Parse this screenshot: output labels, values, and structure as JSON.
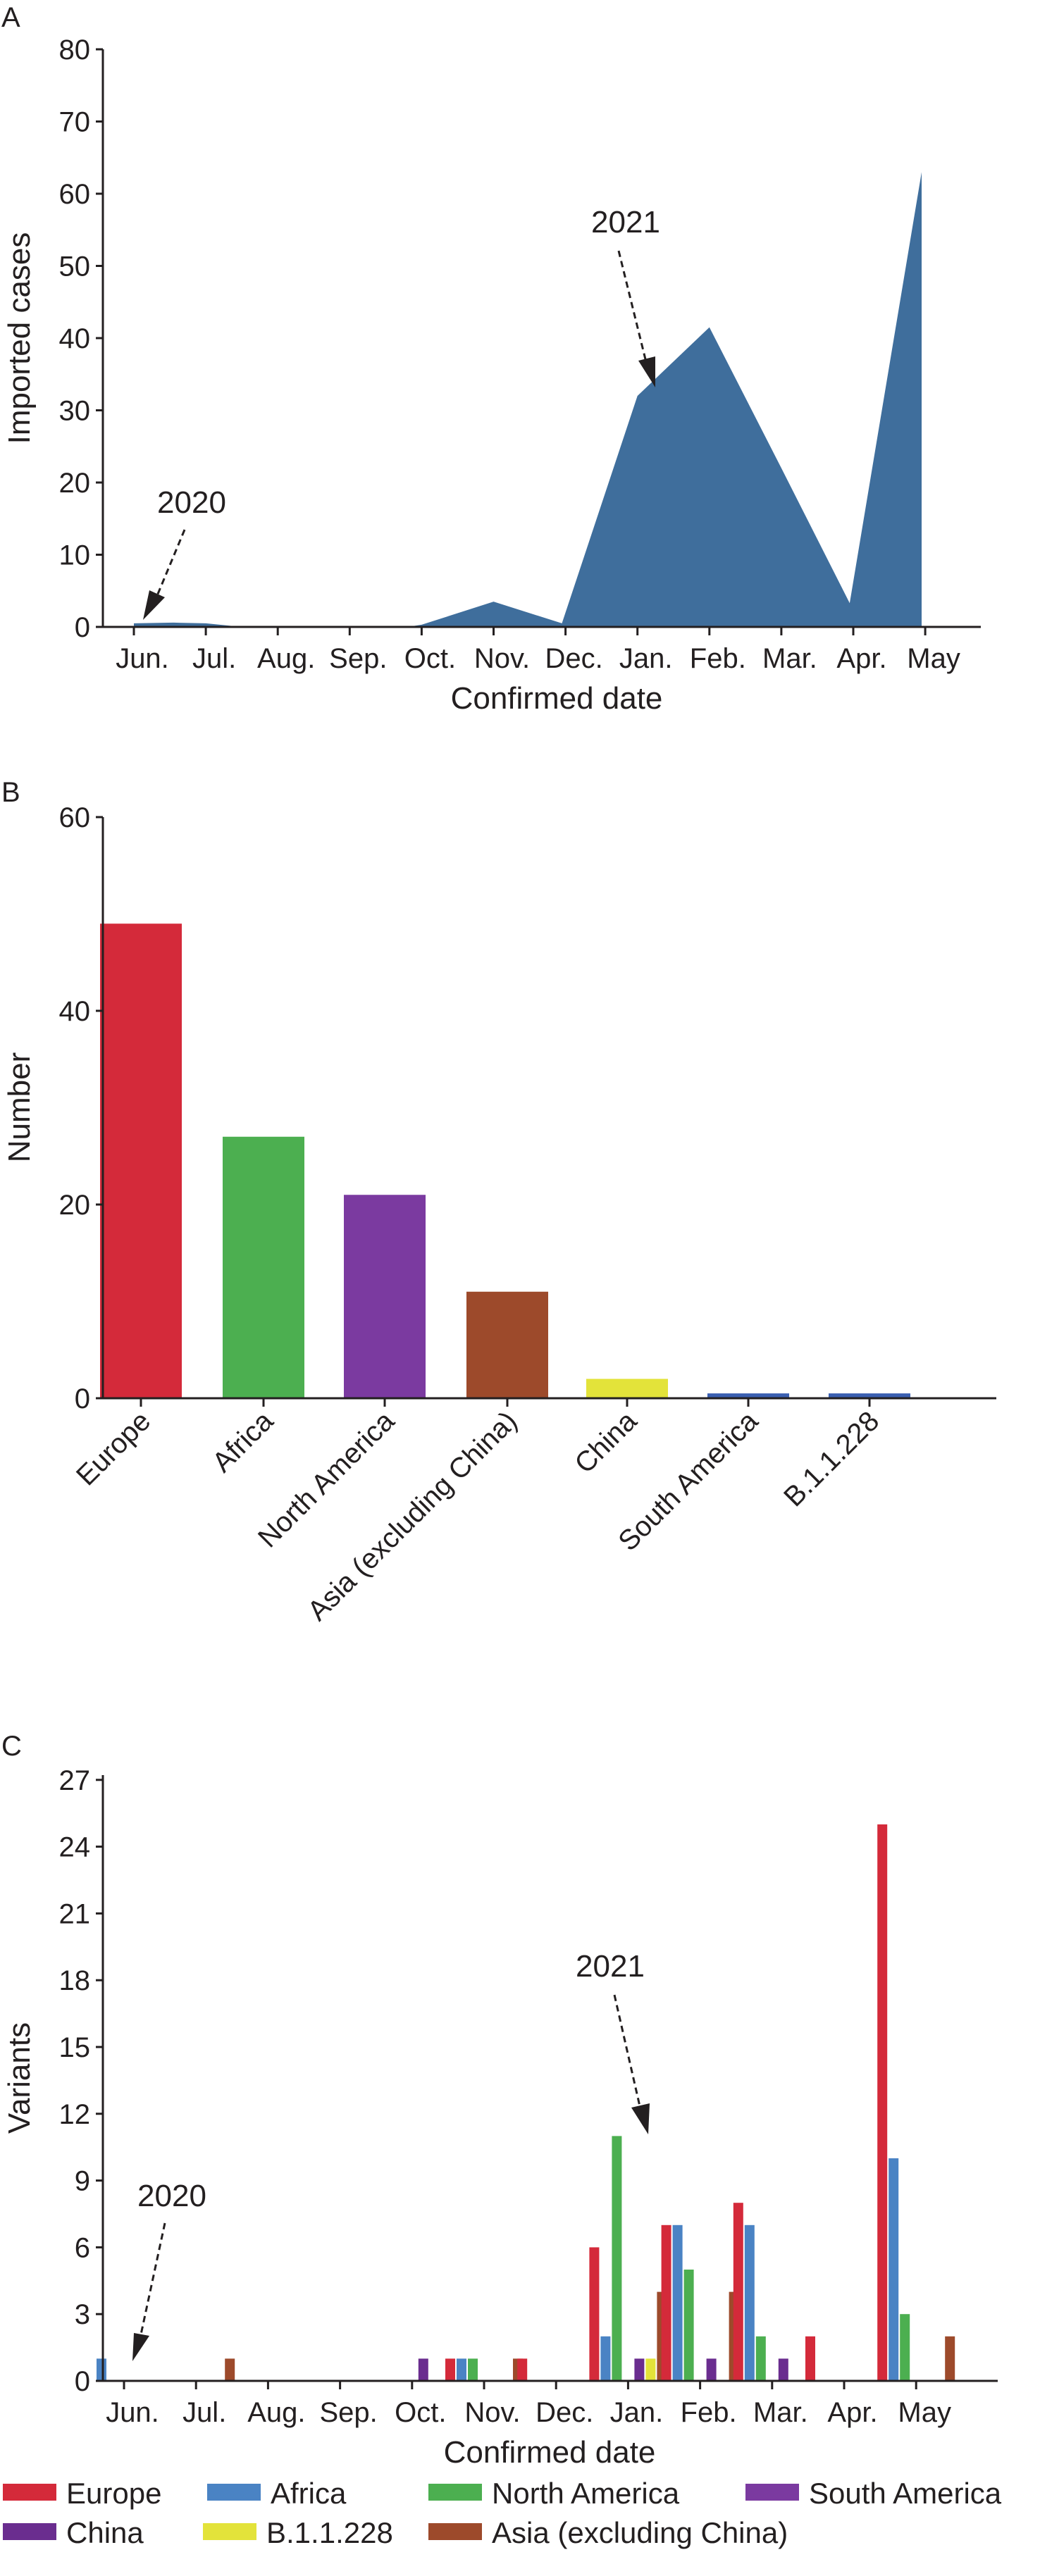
{
  "panels": [
    {
      "letter": "A"
    },
    {
      "letter": "B"
    },
    {
      "letter": "C"
    }
  ],
  "chart_data": [
    {
      "type": "area",
      "panel": "A",
      "xlabel": "Confirmed date",
      "ylabel": "Imported cases",
      "ylim": [
        0,
        80
      ],
      "yticks": [
        "0",
        "10",
        "20",
        "30",
        "40",
        "50",
        "60",
        "70",
        "80"
      ],
      "categories": [
        "Jun.",
        "Jul.",
        "Aug.",
        "Sep.",
        "Oct.",
        "Nov.",
        "Dec.",
        "Jan.",
        "Feb.",
        "Mar.",
        "Apr.",
        "May"
      ],
      "color": "#3f6e9c",
      "series": [
        {
          "x": [
            0.0,
            0.55,
            1.0,
            1.5,
            2,
            3,
            3.8,
            4,
            5.0,
            5.95,
            7.0,
            8.0,
            9.0,
            9.95,
            10.95
          ],
          "y": [
            0.5,
            0.6,
            0.5,
            0,
            0,
            0,
            0,
            0.3,
            3.5,
            0.5,
            32,
            41.5,
            22,
            3.3,
            63
          ]
        }
      ],
      "annotations": [
        {
          "label": "2020",
          "x": 0,
          "y": 0.5
        },
        {
          "label": "2021",
          "x": 7,
          "y": 32
        }
      ],
      "grid": false
    },
    {
      "type": "bar",
      "panel": "B",
      "ylabel": "Number",
      "ylim": [
        0,
        60
      ],
      "yticks": [
        "0",
        "20",
        "40",
        "60"
      ],
      "categories": [
        "Europe",
        "Africa",
        "North America",
        "Asia (excluding China)",
        "China",
        "South America",
        "B.1.1.228"
      ],
      "values": [
        49,
        27,
        21,
        11,
        2,
        0.5,
        0.5
      ],
      "colors": [
        "#d42a3a",
        "#4caf50",
        "#7b3aa0",
        "#9d4a2b",
        "#e3e33a",
        "#3a5fb0",
        "#3a5fb0"
      ],
      "grid": false
    },
    {
      "type": "bar",
      "panel": "C",
      "xlabel": "Confirmed date",
      "ylabel": "Variants",
      "ylim": [
        0,
        27
      ],
      "yticks": [
        "0",
        "3",
        "6",
        "9",
        "12",
        "15",
        "18",
        "21",
        "24",
        "27"
      ],
      "categories": [
        "Jun.",
        "Jul.",
        "Aug.",
        "Sep.",
        "Oct.",
        "Nov.",
        "Dec.",
        "Jan.",
        "Feb.",
        "Mar.",
        "Apr.",
        "May"
      ],
      "series": [
        {
          "name": "Europe",
          "color": "#d42a3a",
          "values": [
            0,
            0,
            0,
            0,
            0,
            1,
            1,
            6,
            7,
            8,
            2,
            25
          ]
        },
        {
          "name": "Africa",
          "color": "#4a83c4",
          "values": [
            1,
            0,
            0,
            0,
            0,
            1,
            0,
            2,
            7,
            7,
            0,
            10
          ]
        },
        {
          "name": "North America",
          "color": "#4caf50",
          "values": [
            0,
            0,
            0,
            0,
            0,
            1,
            0,
            11,
            5,
            2,
            0,
            3
          ]
        },
        {
          "name": "South America",
          "color": "#7b3aa0",
          "values": [
            0,
            0,
            0,
            0,
            0,
            0,
            0,
            0,
            0,
            0,
            0,
            0
          ]
        },
        {
          "name": "China",
          "color": "#6a2d8f",
          "values": [
            0,
            0,
            0,
            0,
            1,
            0,
            0,
            1,
            1,
            1,
            0,
            0
          ]
        },
        {
          "name": "B.1.1.228",
          "color": "#e3e33a",
          "values": [
            0,
            0,
            0,
            0,
            0,
            0,
            0,
            1,
            0,
            0,
            0,
            0
          ]
        },
        {
          "name": "Asia (excluding China)",
          "color": "#9d4a2b",
          "values": [
            0,
            1,
            0,
            0,
            0,
            1,
            0,
            4,
            4,
            0,
            0,
            2
          ]
        }
      ],
      "annotations": [
        {
          "label": "2020",
          "x": 0,
          "y": 1
        },
        {
          "label": "2021",
          "x": 7,
          "y": 11
        }
      ],
      "legend": "bottom",
      "grid": false
    }
  ]
}
